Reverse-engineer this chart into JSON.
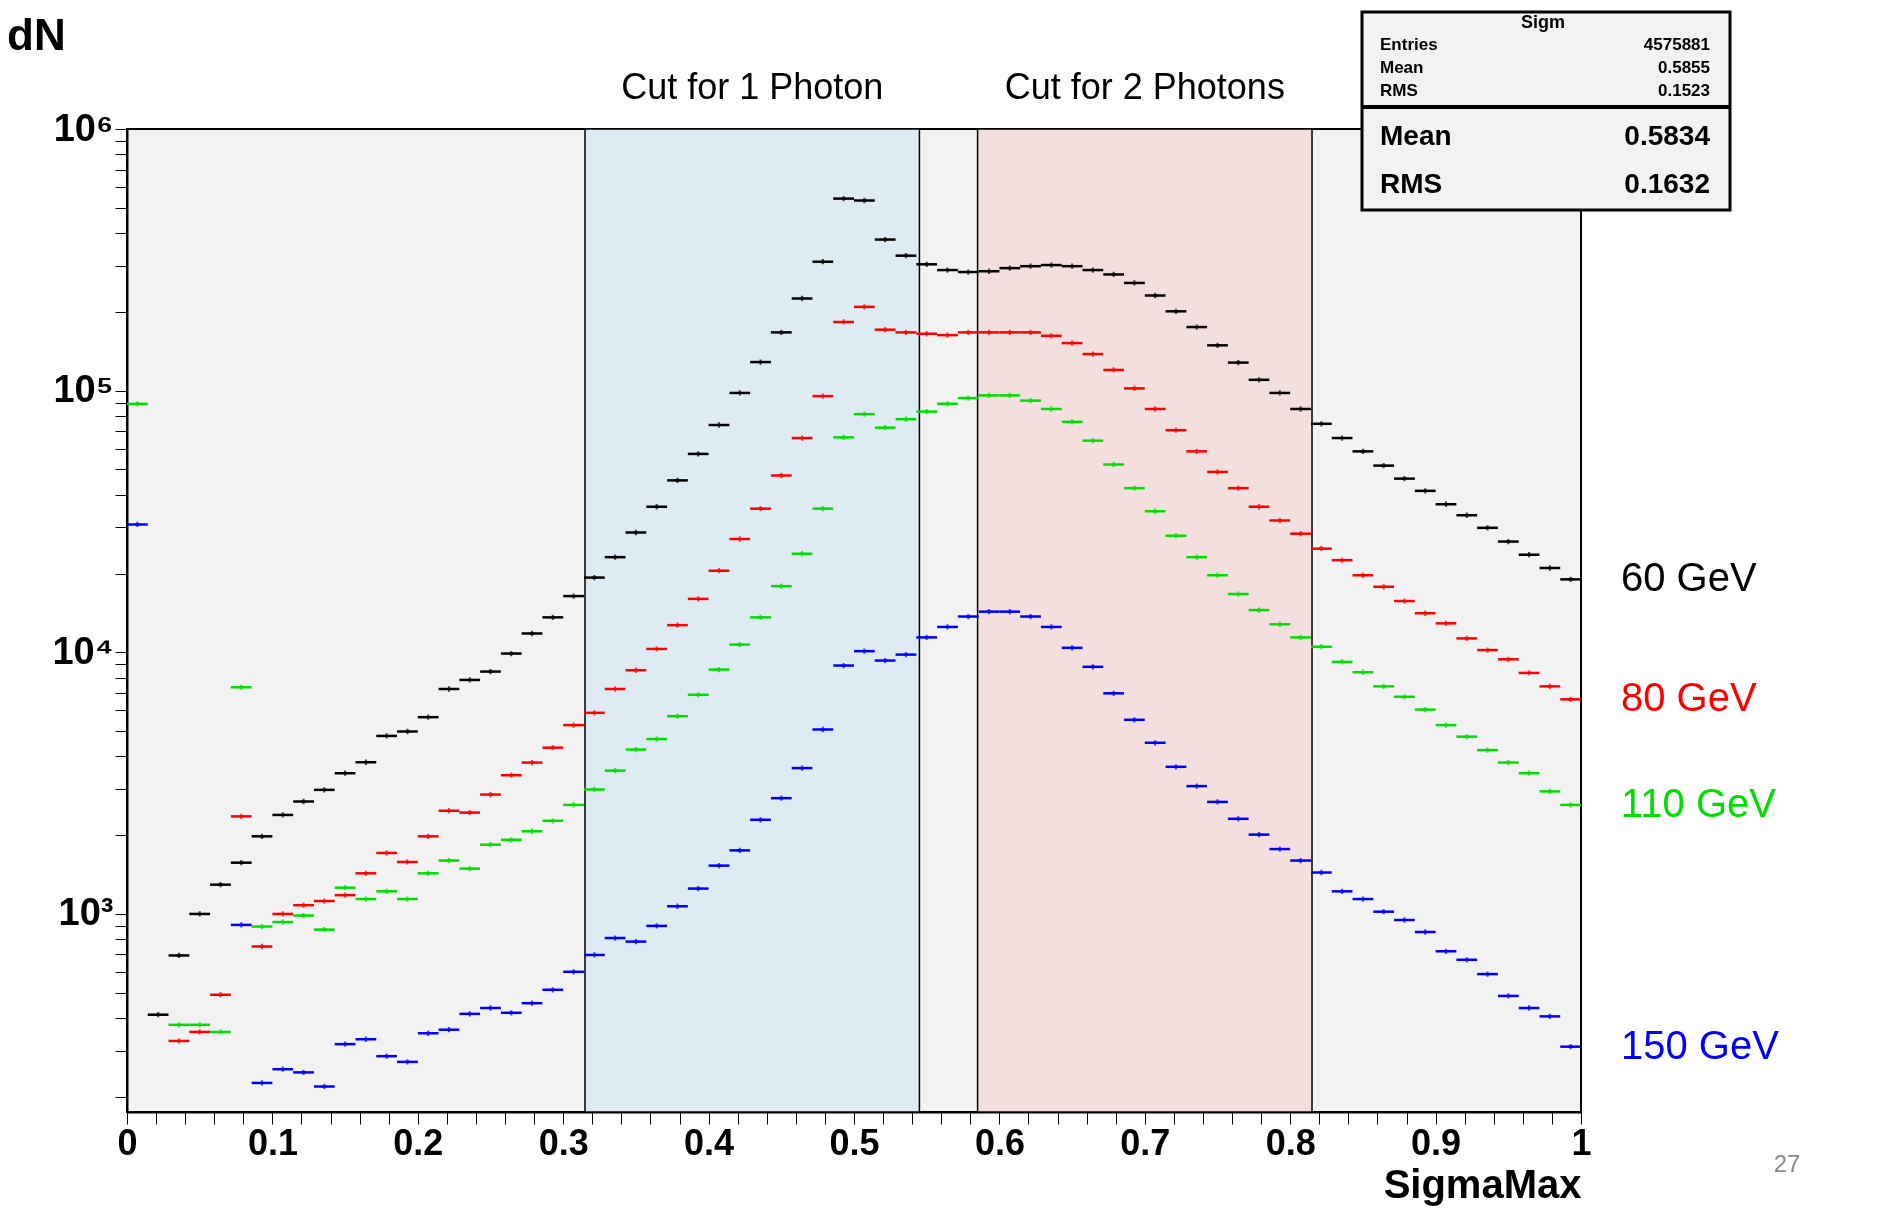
{
  "chart_data": {
    "type": "scatter",
    "xlabel": "SigmaMax",
    "ylabel": "dN",
    "log": "y",
    "marker": "cross",
    "xlim": [
      0,
      1
    ],
    "ylim": [
      175,
      1000000
    ],
    "xticks": [
      0,
      {
        "value": 0.02,
        "label": null
      },
      {
        "value": 0.04,
        "label": null
      },
      {
        "value": 0.06,
        "label": null
      },
      {
        "value": 0.08,
        "label": null
      },
      0.1,
      {
        "value": 0.12,
        "label": null
      },
      {
        "value": 0.14,
        "label": null
      },
      {
        "value": 0.16,
        "label": null
      },
      {
        "value": 0.18,
        "label": null
      },
      0.2,
      {
        "value": 0.22,
        "label": null
      },
      {
        "value": 0.24,
        "label": null
      },
      {
        "value": 0.26,
        "label": null
      },
      {
        "value": 0.28,
        "label": null
      },
      0.3,
      {
        "value": 0.32,
        "label": null
      },
      {
        "value": 0.34,
        "label": null
      },
      {
        "value": 0.36,
        "label": null
      },
      {
        "value": 0.38,
        "label": null
      },
      0.4,
      {
        "value": 0.42,
        "label": null
      },
      {
        "value": 0.44,
        "label": null
      },
      {
        "value": 0.46,
        "label": null
      },
      {
        "value": 0.48,
        "label": null
      },
      0.5,
      {
        "value": 0.52,
        "label": null
      },
      {
        "value": 0.54,
        "label": null
      },
      {
        "value": 0.56,
        "label": null
      },
      {
        "value": 0.58,
        "label": null
      },
      0.6,
      {
        "value": 0.62,
        "label": null
      },
      {
        "value": 0.64,
        "label": null
      },
      {
        "value": 0.66,
        "label": null
      },
      {
        "value": 0.68,
        "label": null
      },
      0.7,
      {
        "value": 0.72,
        "label": null
      },
      {
        "value": 0.74,
        "label": null
      },
      {
        "value": 0.76,
        "label": null
      },
      {
        "value": 0.78,
        "label": null
      },
      0.8,
      {
        "value": 0.82,
        "label": null
      },
      {
        "value": 0.84,
        "label": null
      },
      {
        "value": 0.86,
        "label": null
      },
      {
        "value": 0.88,
        "label": null
      },
      0.9,
      {
        "value": 0.92,
        "label": null
      },
      {
        "value": 0.94,
        "label": null
      },
      {
        "value": 0.96,
        "label": null
      },
      {
        "value": 0.98,
        "label": null
      },
      1
    ],
    "yticks": [
      {
        "value": 200,
        "label": null
      },
      {
        "value": 300,
        "label": null
      },
      {
        "value": 400,
        "label": null
      },
      {
        "value": 500,
        "label": null
      },
      {
        "value": 600,
        "label": null
      },
      {
        "value": 700,
        "label": null
      },
      {
        "value": 800,
        "label": null
      },
      {
        "value": 900,
        "label": null
      },
      {
        "value": 1000,
        "label": "10³"
      },
      {
        "value": 2000,
        "label": null
      },
      {
        "value": 3000,
        "label": null
      },
      {
        "value": 4000,
        "label": null
      },
      {
        "value": 5000,
        "label": null
      },
      {
        "value": 6000,
        "label": null
      },
      {
        "value": 7000,
        "label": null
      },
      {
        "value": 8000,
        "label": null
      },
      {
        "value": 9000,
        "label": null
      },
      {
        "value": 10000,
        "label": "10⁴"
      },
      {
        "value": 20000,
        "label": null
      },
      {
        "value": 30000,
        "label": null
      },
      {
        "value": 40000,
        "label": null
      },
      {
        "value": 50000,
        "label": null
      },
      {
        "value": 60000,
        "label": null
      },
      {
        "value": 70000,
        "label": null
      },
      {
        "value": 80000,
        "label": null
      },
      {
        "value": 90000,
        "label": null
      },
      {
        "value": 100000,
        "label": "10⁵"
      },
      {
        "value": 200000,
        "label": null
      },
      {
        "value": 300000,
        "label": null
      },
      {
        "value": 400000,
        "label": null
      },
      {
        "value": 500000,
        "label": null
      },
      {
        "value": 600000,
        "label": null
      },
      {
        "value": 700000,
        "label": null
      },
      {
        "value": 800000,
        "label": null
      },
      {
        "value": 900000,
        "label": null
      },
      {
        "value": 1000000,
        "label": "10⁶"
      }
    ],
    "x": [
      0.00714,
      0.02143,
      0.03571,
      0.05,
      0.06429,
      0.07857,
      0.09286,
      0.10714,
      0.12143,
      0.13571,
      0.15,
      0.16429,
      0.17857,
      0.19286,
      0.20714,
      0.22143,
      0.23571,
      0.25,
      0.26429,
      0.27857,
      0.29286,
      0.30714,
      0.32143,
      0.33571,
      0.35,
      0.36429,
      0.37857,
      0.39286,
      0.40714,
      0.42143,
      0.43571,
      0.45,
      0.46429,
      0.47857,
      0.49286,
      0.50714,
      0.52143,
      0.53571,
      0.55,
      0.56429,
      0.57857,
      0.59286,
      0.60714,
      0.62143,
      0.63571,
      0.65,
      0.66429,
      0.67857,
      0.69286,
      0.70714,
      0.72143,
      0.73571,
      0.75,
      0.76429,
      0.77857,
      0.79286,
      0.80714,
      0.82143,
      0.83571,
      0.85,
      0.86429,
      0.87857,
      0.89286,
      0.90714,
      0.92143,
      0.93571,
      0.95,
      0.96429,
      0.97857,
      0.99286
    ],
    "series": [
      {
        "name": "60 GeV",
        "color": "#000000",
        "values": [
          null,
          412,
          694,
          1000,
          1294,
          1570,
          1980,
          2390,
          2690,
          2980,
          3450,
          3800,
          4790,
          4980,
          5650,
          7240,
          7840,
          8440,
          9890,
          11800,
          13600,
          16400,
          19300,
          23100,
          28700,
          36000,
          45400,
          57300,
          73900,
          98000,
          128600,
          167000,
          225000,
          311000,
          542000,
          533000,
          378000,
          328000,
          304000,
          289000,
          284000,
          286000,
          294000,
          299000,
          302000,
          299000,
          289000,
          278000,
          258000,
          231000,
          201000,
          175000,
          149000,
          128000,
          110000,
          98000,
          85100,
          74700,
          65900,
          58600,
          51700,
          46100,
          41400,
          36800,
          33400,
          29900,
          26500,
          23600,
          21000,
          19000
        ],
        "xerrors": [
          null,
          0.00714,
          0.00714,
          0.00714,
          0.00714,
          0.00714,
          0.00714,
          0.00714,
          0.00714,
          0.00714,
          0.00714,
          0.00714,
          0.00714,
          0.00714,
          0.00714,
          0.00714,
          0.00714,
          0.00714,
          0.00714,
          0.00714,
          0.00714,
          0.00714,
          0.00714,
          0.00714,
          0.00714,
          0.00714,
          0.00714,
          0.00714,
          0.00714,
          0.00714,
          0.00714,
          0.00714,
          0.00714,
          0.00714,
          0.00714,
          0.00714,
          0.00714,
          0.00714,
          0.00714,
          0.00714,
          0.00714,
          0.00714,
          0.00714,
          0.00714,
          0.00714,
          0.00714,
          0.00714,
          0.00714,
          0.00714,
          0.00714,
          0.00714,
          0.00714,
          0.00714,
          0.00714,
          0.00714,
          0.00714,
          0.00714,
          0.00714,
          0.00714,
          0.00714,
          0.00714,
          0.00714,
          0.00714,
          0.00714,
          0.00714,
          0.00714,
          0.00714,
          0.00714,
          0.00714,
          0.00714
        ]
      },
      {
        "name": "80 GeV",
        "color": "#ff0000",
        "values": [
          null,
          null,
          327,
          354,
          491,
          2360,
          751,
          1000,
          1080,
          1120,
          1180,
          1430,
          1710,
          1580,
          1980,
          2480,
          2440,
          2860,
          3390,
          3790,
          4320,
          5270,
          5870,
          7240,
          8540,
          10300,
          12700,
          16000,
          20500,
          27100,
          35400,
          47400,
          65900,
          95300,
          183000,
          209000,
          171000,
          167000,
          165000,
          163000,
          167000,
          167000,
          167000,
          167000,
          162000,
          152000,
          138000,
          120000,
          102000,
          85100,
          70600,
          58600,
          48900,
          42400,
          36000,
          31900,
          28400,
          24900,
          22500,
          19700,
          17800,
          15700,
          14100,
          12900,
          11300,
          10200,
          9400,
          8340,
          7410,
          6610
        ],
        "xerrors": [
          null,
          null,
          0.00714,
          0.00714,
          0.00714,
          0.00714,
          0.00714,
          0.00714,
          0.00714,
          0.00714,
          0.00714,
          0.00714,
          0.00714,
          0.00714,
          0.00714,
          0.00714,
          0.00714,
          0.00714,
          0.00714,
          0.00714,
          0.00714,
          0.00714,
          0.00714,
          0.00714,
          0.00714,
          0.00714,
          0.00714,
          0.00714,
          0.00714,
          0.00714,
          0.00714,
          0.00714,
          0.00714,
          0.00714,
          0.00714,
          0.00714,
          0.00714,
          0.00714,
          0.00714,
          0.00714,
          0.00714,
          0.00714,
          0.00714,
          0.00714,
          0.00714,
          0.00714,
          0.00714,
          0.00714,
          0.00714,
          0.00714,
          0.00714,
          0.00714,
          0.00714,
          0.00714,
          0.00714,
          0.00714,
          0.00714,
          0.00714,
          0.00714,
          0.00714,
          0.00714,
          0.00714,
          0.00714,
          0.00714,
          0.00714,
          0.00714,
          0.00714,
          0.00714,
          0.00714,
          0.00714
        ]
      },
      {
        "name": "110 GeV",
        "color": "#00dd00",
        "values": [
          89000,
          null,
          377,
          377,
          354,
          7350,
          895,
          931,
          986,
          871,
          1260,
          1140,
          1220,
          1140,
          1430,
          1600,
          1490,
          1840,
          1920,
          2070,
          2270,
          2610,
          2990,
          3530,
          4250,
          4660,
          5700,
          6880,
          8590,
          10700,
          13600,
          17900,
          23800,
          35400,
          66300,
          81300,
          72200,
          77800,
          83200,
          89100,
          93700,
          95900,
          95900,
          91600,
          85100,
          76000,
          64400,
          52200,
          42400,
          34600,
          27900,
          23100,
          19700,
          16700,
          14500,
          12800,
          11400,
          10500,
          9190,
          8390,
          7410,
          6760,
          6040,
          5270,
          4760,
          4230,
          3790,
          3450,
          2940,
          2610
        ],
        "xerrors": [
          0.00714,
          null,
          0.00714,
          0.00714,
          0.00714,
          0.00714,
          0.00714,
          0.00714,
          0.00714,
          0.00714,
          0.00714,
          0.00714,
          0.00714,
          0.00714,
          0.00714,
          0.00714,
          0.00714,
          0.00714,
          0.00714,
          0.00714,
          0.00714,
          0.00714,
          0.00714,
          0.00714,
          0.00714,
          0.00714,
          0.00714,
          0.00714,
          0.00714,
          0.00714,
          0.00714,
          0.00714,
          0.00714,
          0.00714,
          0.00714,
          0.00714,
          0.00714,
          0.00714,
          0.00714,
          0.00714,
          0.00714,
          0.00714,
          0.00714,
          0.00714,
          0.00714,
          0.00714,
          0.00714,
          0.00714,
          0.00714,
          0.00714,
          0.00714,
          0.00714,
          0.00714,
          0.00714,
          0.00714,
          0.00714,
          0.00714,
          0.00714,
          0.00714,
          0.00714,
          0.00714,
          0.00714,
          0.00714,
          0.00714,
          0.00714,
          0.00714,
          0.00714,
          0.00714,
          0.00714,
          0.00714
        ]
      },
      {
        "name": "150 GeV",
        "color": "#0000ff",
        "values": [
          30800,
          null,
          null,
          null,
          null,
          908,
          226,
          255,
          248,
          219,
          318,
          332,
          286,
          272,
          350,
          361,
          415,
          437,
          419,
          456,
          513,
          601,
          697,
          809,
          784,
          900,
          1070,
          1250,
          1530,
          1750,
          2290,
          2770,
          3610,
          5070,
          8900,
          10100,
          9300,
          9800,
          11400,
          12500,
          13700,
          14300,
          14300,
          13700,
          12500,
          10400,
          8800,
          6970,
          5520,
          4510,
          3650,
          3080,
          2680,
          2310,
          2010,
          1770,
          1600,
          1440,
          1220,
          1140,
          1020,
          948,
          853,
          720,
          668,
          589,
          486,
          437,
          406,
          311
        ],
        "xerrors": [
          0.00714,
          null,
          null,
          null,
          null,
          0.00714,
          0.00714,
          0.00714,
          0.00714,
          0.00714,
          0.00714,
          0.00714,
          0.00714,
          0.00714,
          0.00714,
          0.00714,
          0.00714,
          0.00714,
          0.00714,
          0.00714,
          0.00714,
          0.00714,
          0.00714,
          0.00714,
          0.00714,
          0.00714,
          0.00714,
          0.00714,
          0.00714,
          0.00714,
          0.00714,
          0.00714,
          0.00714,
          0.00714,
          0.00714,
          0.00714,
          0.00714,
          0.00714,
          0.00714,
          0.00714,
          0.00714,
          0.00714,
          0.00714,
          0.00714,
          0.00714,
          0.00714,
          0.00714,
          0.00714,
          0.00714,
          0.00714,
          0.00714,
          0.00714,
          0.00714,
          0.00714,
          0.00714,
          0.00714,
          0.00714,
          0.00714,
          0.00714,
          0.00714,
          0.00714,
          0.00714,
          0.00714,
          0.00714,
          0.00714,
          0.00714,
          0.00714,
          0.00714,
          0.00714,
          0.00714
        ]
      }
    ],
    "bands": [
      {
        "axis": "x",
        "from": 0.315,
        "to": 0.545,
        "label": "Cut for 1 Photon",
        "color": "#deebf3"
      },
      {
        "axis": "x",
        "from": 0.585,
        "to": 0.815,
        "label": "Cut for 2 Photons",
        "color": "#f4dfdf"
      }
    ],
    "annotations": [
      "Sigm",
      "Entries",
      "4575881",
      "Mean",
      "0.5855",
      "RMS",
      "0.1523",
      "Mean",
      "0.5834",
      "RMS",
      "0.1632",
      "27"
    ]
  }
}
